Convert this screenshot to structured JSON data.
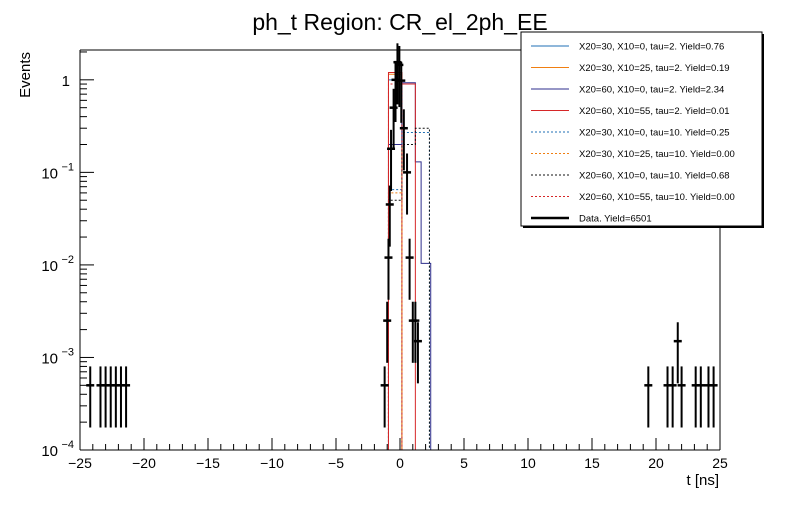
{
  "chart_data": {
    "type": "histogram",
    "title": "ph_t Region: CR_el_2ph_EE",
    "xlabel": "t [ns]",
    "ylabel": "Events",
    "xlim": [
      -25,
      25
    ],
    "ylim": [
      0.0001,
      2.1
    ],
    "log_y": true,
    "grid": false,
    "legend_position": "top-right",
    "x_ticks": [
      -25,
      -20,
      -15,
      -10,
      -5,
      0,
      5,
      10,
      15,
      20,
      25
    ],
    "x_tick_labels": [
      "−25",
      "−20",
      "−15",
      "−10",
      "−5",
      "0",
      "5",
      "10",
      "15",
      "20",
      "25"
    ],
    "y_ticks": [
      {
        "value": 0.0001,
        "base": "10",
        "exp": "−4"
      },
      {
        "value": 0.001,
        "base": "10",
        "exp": "−3"
      },
      {
        "value": 0.01,
        "base": "10",
        "exp": "−2"
      },
      {
        "value": 0.1,
        "base": "10",
        "exp": "−1"
      },
      {
        "value": 1,
        "base": "1",
        "exp": ""
      }
    ],
    "series": [
      {
        "name": "X20=30, X10=0, tau=2. Yield=0.76",
        "color": "#1f6fb4",
        "dash": "solid",
        "steps": [
          [
            -0.9,
            1.0
          ],
          [
            0.15,
            0.0001
          ]
        ]
      },
      {
        "name": "X20=30, X10=25, tau=2. Yield=0.19",
        "color": "#f07f12",
        "dash": "solid",
        "steps": [
          [
            -0.9,
            1.15
          ],
          [
            0.15,
            0.0001
          ]
        ]
      },
      {
        "name": "X20=60, X10=0, tau=2. Yield=2.34",
        "color": "#2e2e8c",
        "dash": "solid",
        "steps": [
          [
            -0.9,
            0.2
          ],
          [
            0.15,
            0.93
          ],
          [
            1.2,
            0.13
          ],
          [
            2.3,
            0.0001
          ]
        ]
      },
      {
        "name": "X20=60, X10=55, tau=2. Yield=0.01",
        "color": "#d62728",
        "dash": "solid",
        "steps": [
          [
            -0.9,
            1.2
          ],
          [
            0.15,
            0.9
          ],
          [
            1.2,
            0.0001
          ]
        ]
      },
      {
        "name": "X20=30, X10=0, tau=10. Yield=0.25",
        "color": "#1f6fb4",
        "dash": "dotted",
        "steps": [
          [
            -0.9,
            0.065
          ],
          [
            0.15,
            0.27
          ],
          [
            2.3,
            0.0001
          ]
        ]
      },
      {
        "name": "X20=30, X10=25, tau=10. Yield=0.00",
        "color": "#f07f12",
        "dash": "dotted",
        "steps": [
          [
            -0.9,
            0.06
          ],
          [
            0.15,
            0.0001
          ]
        ]
      },
      {
        "name": "X20=60, X10=0, tau=10. Yield=0.68",
        "color": "#111111",
        "dash": "dotted",
        "steps": [
          [
            -0.9,
            0.05
          ],
          [
            0.15,
            0.2
          ],
          [
            1.2,
            0.3
          ],
          [
            2.3,
            0.0001
          ]
        ]
      },
      {
        "name": "X20=60, X10=55, tau=10. Yield=0.00",
        "color": "#d62728",
        "dash": "dotted",
        "steps": [
          [
            -0.9,
            0.9
          ],
          [
            0.15,
            0.0001
          ]
        ]
      }
    ],
    "solid_step_extras": [
      {
        "series": 2,
        "steps": [
          [
            -0.9,
            0.2
          ],
          [
            0.15,
            0.93
          ],
          [
            1.2,
            0.13
          ],
          [
            1.65,
            0.0104
          ],
          [
            2.4,
            0.0001
          ]
        ]
      }
    ],
    "data_series": {
      "name": "Data. Yield=6501",
      "color": "#000000",
      "points": [
        {
          "x": -24.2,
          "y": 0.0005
        },
        {
          "x": -23.4,
          "y": 0.0005
        },
        {
          "x": -23.0,
          "y": 0.0005
        },
        {
          "x": -22.6,
          "y": 0.0005
        },
        {
          "x": -22.2,
          "y": 0.0005
        },
        {
          "x": -21.8,
          "y": 0.0005
        },
        {
          "x": -21.4,
          "y": 0.0005
        },
        {
          "x": -1.2,
          "y": 0.0005
        },
        {
          "x": -1.0,
          "y": 0.0025
        },
        {
          "x": -0.9,
          "y": 0.012
        },
        {
          "x": -0.8,
          "y": 0.045
        },
        {
          "x": -0.7,
          "y": 0.18
        },
        {
          "x": -0.5,
          "y": 0.5
        },
        {
          "x": -0.35,
          "y": 1.0
        },
        {
          "x": -0.2,
          "y": 1.55
        },
        {
          "x": -0.05,
          "y": 1.45
        },
        {
          "x": 0.1,
          "y": 0.98
        },
        {
          "x": 0.3,
          "y": 0.3
        },
        {
          "x": 0.55,
          "y": 0.1
        },
        {
          "x": 0.75,
          "y": 0.012
        },
        {
          "x": 1.0,
          "y": 0.0025
        },
        {
          "x": 1.2,
          "y": 0.0025
        },
        {
          "x": 1.4,
          "y": 0.0015
        },
        {
          "x": 19.4,
          "y": 0.0005
        },
        {
          "x": 20.9,
          "y": 0.0005
        },
        {
          "x": 21.3,
          "y": 0.0005
        },
        {
          "x": 21.7,
          "y": 0.0015
        },
        {
          "x": 22.0,
          "y": 0.0005
        },
        {
          "x": 23.1,
          "y": 0.0005
        },
        {
          "x": 23.5,
          "y": 0.0005
        },
        {
          "x": 24.1,
          "y": 0.0005
        },
        {
          "x": 24.5,
          "y": 0.0005
        }
      ]
    }
  }
}
